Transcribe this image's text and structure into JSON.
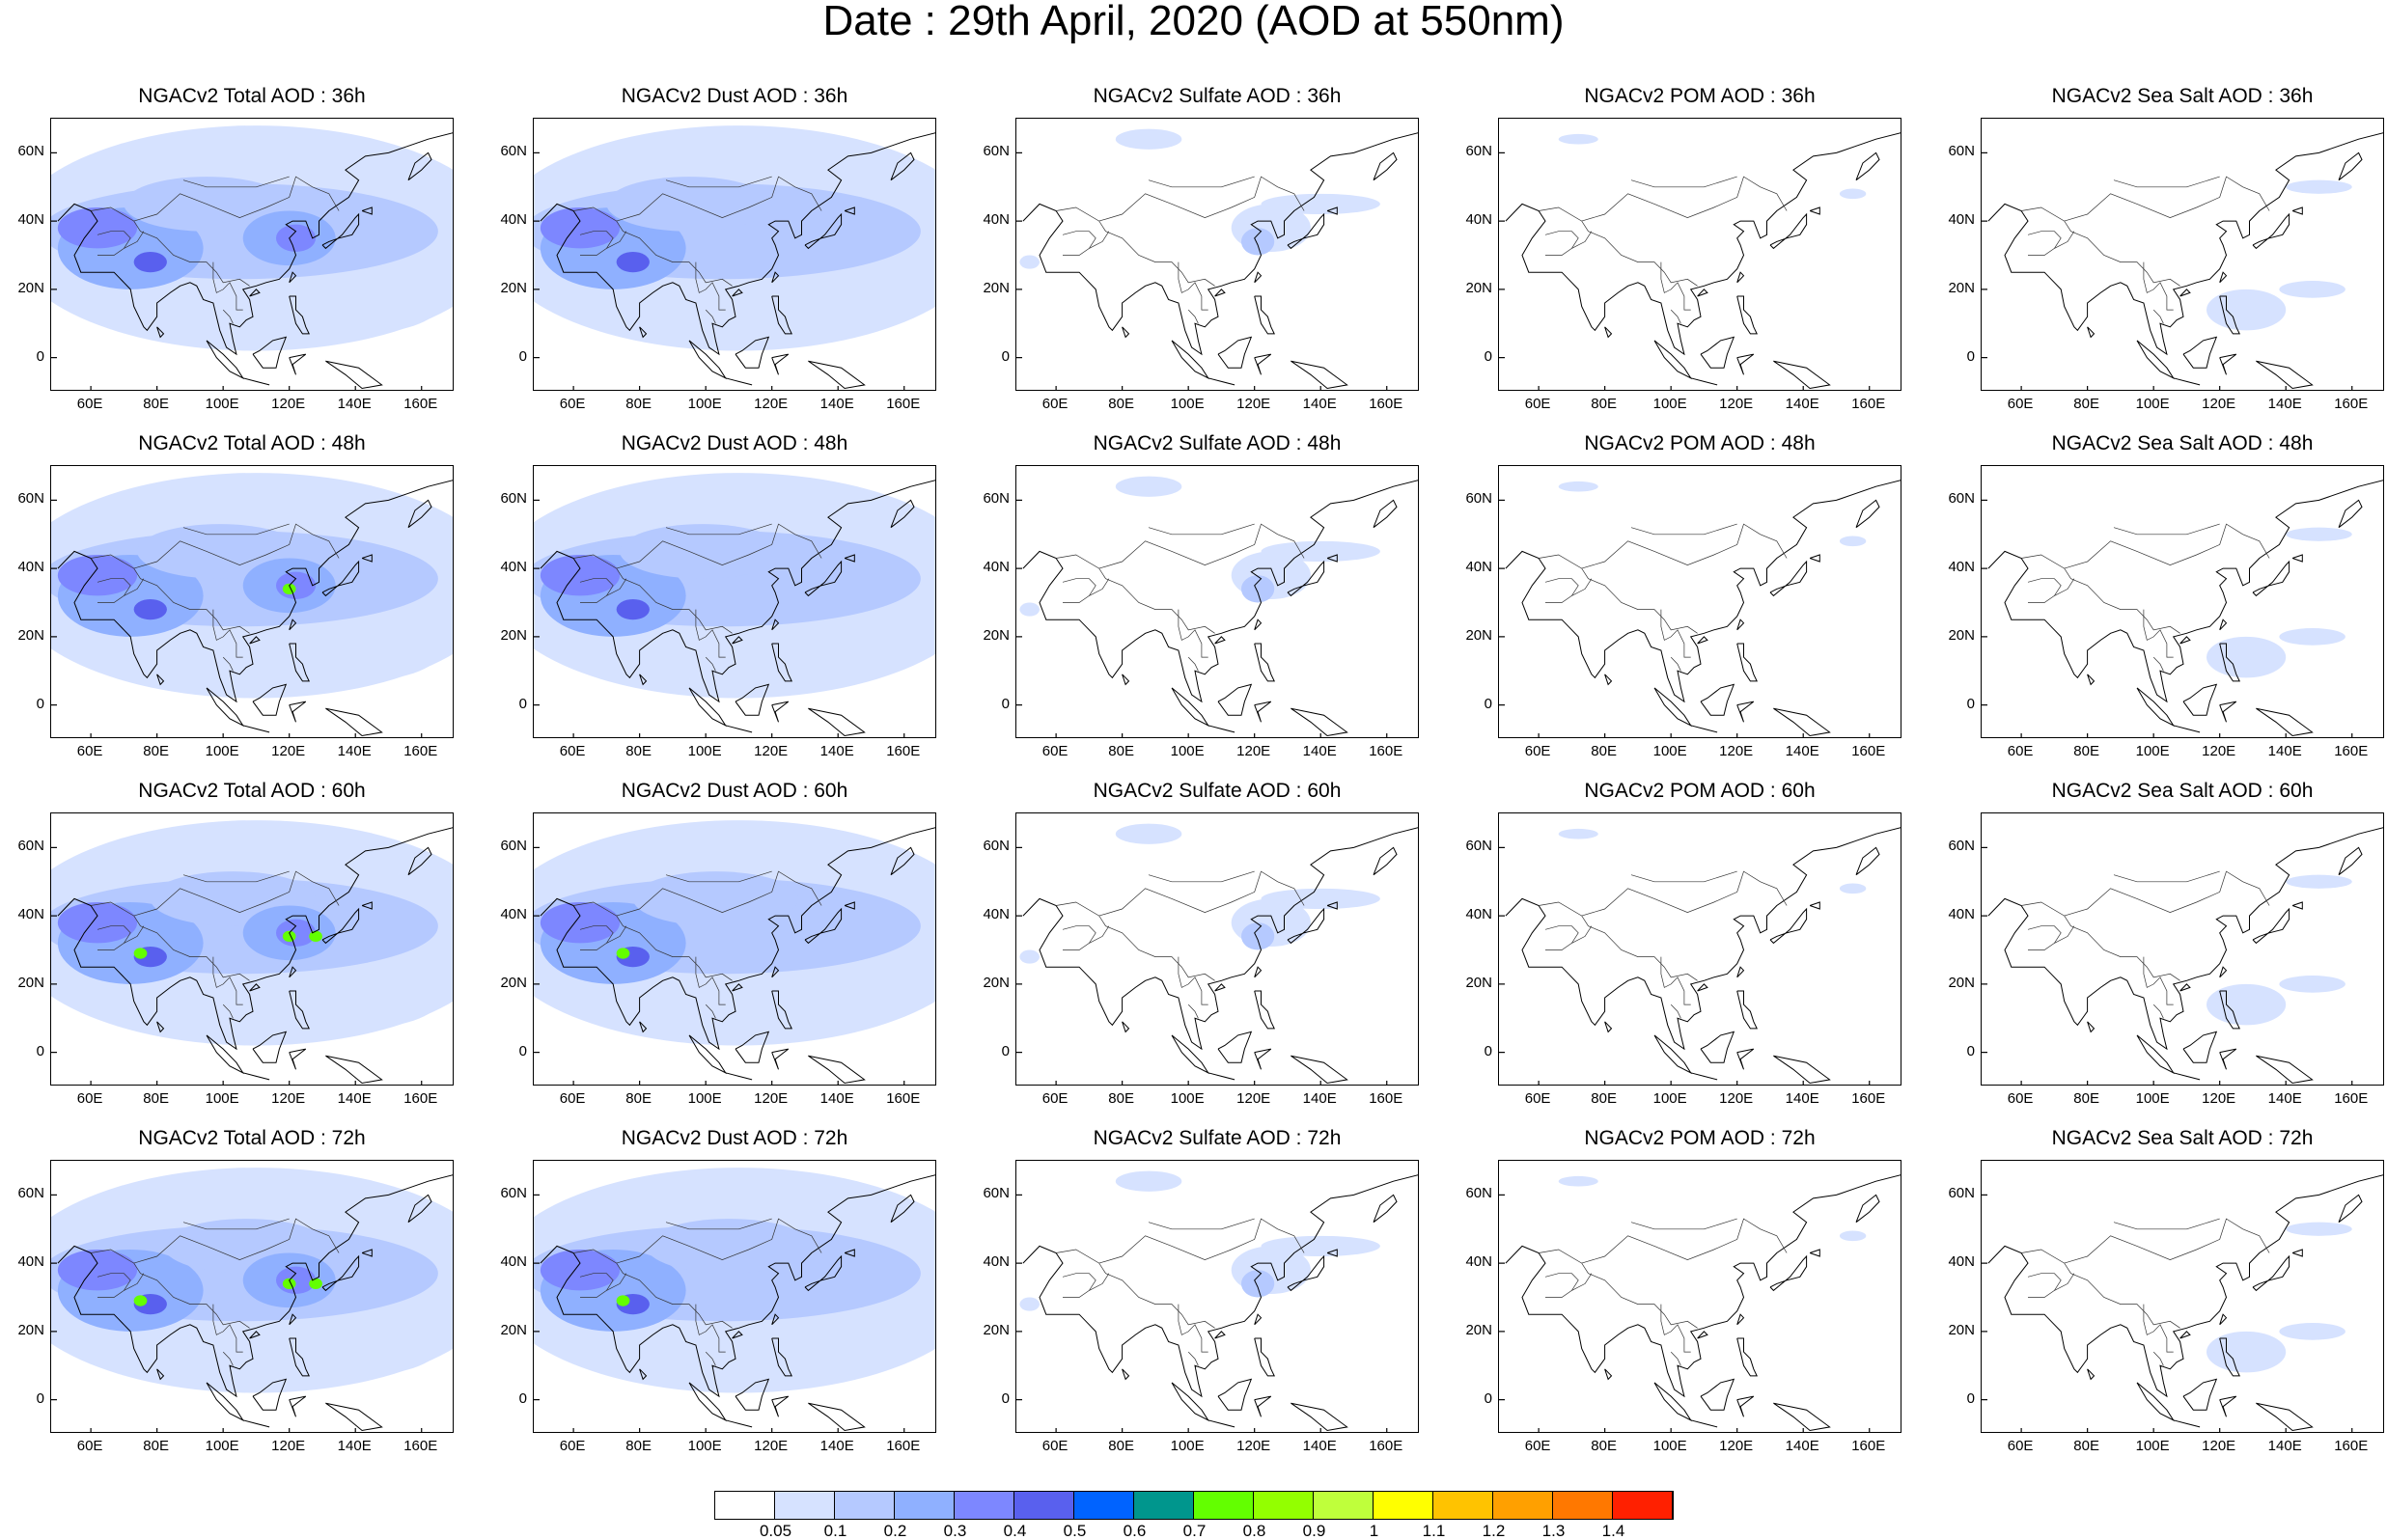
{
  "title": "Date : 29th April, 2020 (AOD at 550nm)",
  "chart_data": {
    "type": "heatmap",
    "figure_title": "Date : 29th April, 2020 (AOD at 550nm)",
    "x_ticks": [
      "60E",
      "80E",
      "100E",
      "120E",
      "140E",
      "160E"
    ],
    "y_ticks": [
      "60N",
      "40N",
      "20N",
      "0"
    ],
    "lon_range": [
      48,
      170
    ],
    "lat_range": [
      -10,
      70
    ],
    "grid": false,
    "colorbar": {
      "placement": "bottom",
      "labels": [
        "0.05",
        "0.1",
        "0.2",
        "0.3",
        "0.4",
        "0.5",
        "0.6",
        "0.7",
        "0.8",
        "0.9",
        "1",
        "1.1",
        "1.2",
        "1.3",
        "1.4"
      ],
      "colors": [
        "#ffffff",
        "#d6e2ff",
        "#b5c9ff",
        "#8fb0ff",
        "#7d87ff",
        "#5960ee",
        "#0063ff",
        "#00968d",
        "#63ff00",
        "#93ff00",
        "#bfff3b",
        "#ffff00",
        "#ffc300",
        "#ffa000",
        "#ff7800",
        "#ff2000"
      ]
    },
    "panels": [
      {
        "title": "NGACv2 Total AOD : 36h",
        "species": "total",
        "lead_hours": 36
      },
      {
        "title": "NGACv2 Dust AOD : 36h",
        "species": "dust",
        "lead_hours": 36
      },
      {
        "title": "NGACv2 Sulfate AOD : 36h",
        "species": "sulfate",
        "lead_hours": 36
      },
      {
        "title": "NGACv2 POM AOD : 36h",
        "species": "pom",
        "lead_hours": 36
      },
      {
        "title": "NGACv2 Sea Salt AOD : 36h",
        "species": "seasalt",
        "lead_hours": 36
      },
      {
        "title": "NGACv2 Total AOD : 48h",
        "species": "total",
        "lead_hours": 48
      },
      {
        "title": "NGACv2 Dust AOD : 48h",
        "species": "dust",
        "lead_hours": 48
      },
      {
        "title": "NGACv2 Sulfate AOD : 48h",
        "species": "sulfate",
        "lead_hours": 48
      },
      {
        "title": "NGACv2 POM AOD : 48h",
        "species": "pom",
        "lead_hours": 48
      },
      {
        "title": "NGACv2 Sea Salt AOD : 48h",
        "species": "seasalt",
        "lead_hours": 48
      },
      {
        "title": "NGACv2 Total AOD : 60h",
        "species": "total",
        "lead_hours": 60
      },
      {
        "title": "NGACv2 Dust AOD : 60h",
        "species": "dust",
        "lead_hours": 60
      },
      {
        "title": "NGACv2 Sulfate AOD : 60h",
        "species": "sulfate",
        "lead_hours": 60
      },
      {
        "title": "NGACv2 POM AOD : 60h",
        "species": "pom",
        "lead_hours": 60
      },
      {
        "title": "NGACv2 Sea Salt AOD : 60h",
        "species": "seasalt",
        "lead_hours": 60
      },
      {
        "title": "NGACv2 Total AOD : 72h",
        "species": "total",
        "lead_hours": 72
      },
      {
        "title": "NGACv2 Dust AOD : 72h",
        "species": "dust",
        "lead_hours": 72
      },
      {
        "title": "NGACv2 Sulfate AOD : 72h",
        "species": "sulfate",
        "lead_hours": 72
      },
      {
        "title": "NGACv2 POM AOD : 72h",
        "species": "pom",
        "lead_hours": 72
      },
      {
        "title": "NGACv2 Sea Salt  AOD : 72h",
        "species": "seasalt",
        "lead_hours": 72
      }
    ]
  }
}
